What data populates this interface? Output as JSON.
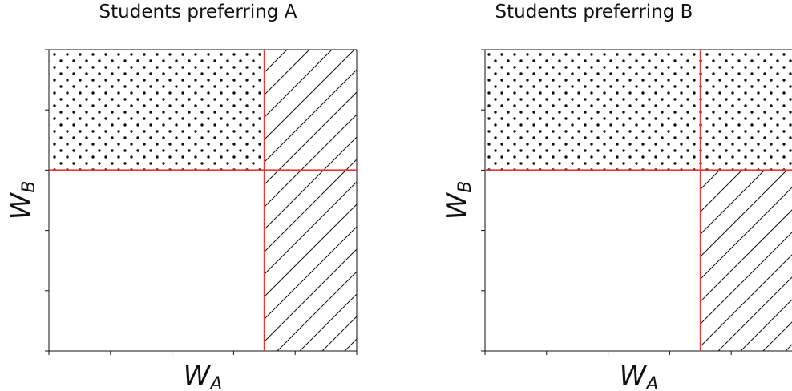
{
  "colors": {
    "threshold_line": "#e53935",
    "border": "#111111",
    "pattern": "#111111",
    "background": "#ffffff"
  },
  "panels": [
    {
      "title": "Students preferring A",
      "xlabel": {
        "main": "W",
        "sub": "A"
      },
      "ylabel": {
        "main": "W",
        "sub": "B"
      },
      "dotted_region": "top-left",
      "hatched_region": "right-full"
    },
    {
      "title": "Students preferring B",
      "xlabel": {
        "main": "W",
        "sub": "A"
      },
      "ylabel": {
        "main": "W",
        "sub": "B"
      },
      "dotted_region": "top-full",
      "hatched_region": "bottom-right"
    }
  ],
  "chart_data": [
    {
      "type": "region-diagram",
      "title": "Students preferring A",
      "xlabel": "W_A",
      "ylabel": "W_B",
      "x_threshold_fraction": 0.7,
      "y_threshold_fraction": 0.6,
      "dotted": "W_B above threshold and W_A below threshold",
      "hatched": "W_A above threshold"
    },
    {
      "type": "region-diagram",
      "title": "Students preferring B",
      "xlabel": "W_A",
      "ylabel": "W_B",
      "x_threshold_fraction": 0.7,
      "y_threshold_fraction": 0.6,
      "dotted": "W_B above threshold",
      "hatched": "W_A above threshold and W_B below threshold"
    }
  ]
}
